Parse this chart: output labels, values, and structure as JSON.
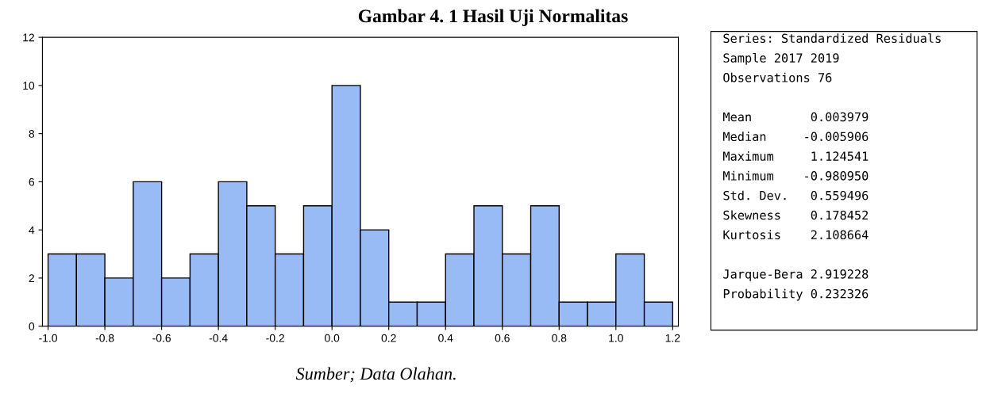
{
  "chart_data": {
    "type": "histogram",
    "title": "Gambar 4. 1 Hasil Uji Normalitas",
    "bins": [
      -1.0,
      -0.9,
      -0.8,
      -0.7,
      -0.6,
      -0.5,
      -0.4,
      -0.3,
      -0.2,
      -0.1,
      0.0,
      0.1,
      0.2,
      0.3,
      0.4,
      0.5,
      0.6,
      0.7,
      0.8,
      0.9,
      1.0,
      1.1,
      1.2
    ],
    "values": [
      3,
      3,
      2,
      6,
      2,
      3,
      6,
      5,
      3,
      5,
      10,
      4,
      1,
      1,
      3,
      5,
      3,
      5,
      1,
      1,
      3,
      1
    ],
    "color": "#99bbf5",
    "xlim": [
      -1.02,
      1.22
    ],
    "xticks": [
      {
        "value": -1.0,
        "label": "-1.0"
      },
      {
        "value": -0.8,
        "label": "-0.8"
      },
      {
        "value": -0.6,
        "label": "-0.6"
      },
      {
        "value": -0.4,
        "label": "-0.4"
      },
      {
        "value": -0.2,
        "label": "-0.2"
      },
      {
        "value": 0.0,
        "label": "0.0"
      },
      {
        "value": 0.2,
        "label": "0.2"
      },
      {
        "value": 0.4,
        "label": "0.4"
      },
      {
        "value": 0.6,
        "label": "0.6"
      },
      {
        "value": 0.8,
        "label": "0.8"
      },
      {
        "value": 1.0,
        "label": "1.0"
      },
      {
        "value": 1.2,
        "label": "1.2"
      }
    ],
    "ylim": [
      0,
      12
    ],
    "yticks": [
      0,
      2,
      4,
      6,
      8,
      10,
      12
    ],
    "grid": false,
    "annotations": [
      "Series: Standardized Residuals",
      "Sample 2017 2019",
      "Observations 76",
      "Mean        0.003979",
      "Median     -0.005906",
      "Maximum     1.124541",
      "Minimum    -0.980950",
      "Std. Dev.   0.559496",
      "Skewness    0.178452",
      "Kurtosis    2.108664",
      "Jarque-Bera 2.919228",
      "Probability 0.232326",
      "Sumber; Data Olahan."
    ]
  }
}
